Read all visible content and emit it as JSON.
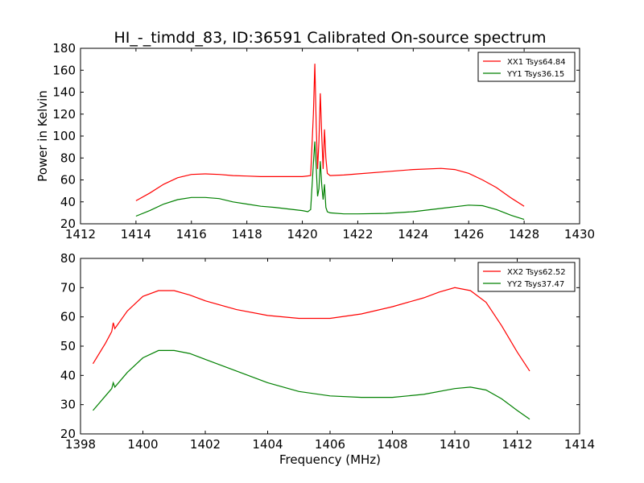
{
  "title": "HI_-_timdd_83, ID:36591 Calibrated On-source spectrum",
  "chart_data": [
    {
      "type": "line",
      "ylabel": "Power in Kelvin",
      "xlabel": "",
      "xlim": [
        1412,
        1430
      ],
      "ylim": [
        20,
        180
      ],
      "xticks": [
        1412,
        1414,
        1416,
        1418,
        1420,
        1422,
        1424,
        1426,
        1428,
        1430
      ],
      "yticks": [
        20,
        40,
        60,
        80,
        100,
        120,
        140,
        160,
        180
      ],
      "legend_position": "top-right",
      "series": [
        {
          "name": "XX1 Tsys64.84",
          "color": "#ff0000",
          "points": [
            [
              1414.0,
              41
            ],
            [
              1414.5,
              48
            ],
            [
              1415.0,
              56
            ],
            [
              1415.5,
              62
            ],
            [
              1416.0,
              65
            ],
            [
              1416.5,
              65.5
            ],
            [
              1417.0,
              65
            ],
            [
              1417.5,
              64
            ],
            [
              1418.0,
              63.5
            ],
            [
              1418.5,
              63
            ],
            [
              1419.0,
              63
            ],
            [
              1419.5,
              63
            ],
            [
              1420.0,
              63
            ],
            [
              1420.3,
              64
            ],
            [
              1420.4,
              120
            ],
            [
              1420.45,
              166
            ],
            [
              1420.5,
              110
            ],
            [
              1420.55,
              70
            ],
            [
              1420.6,
              95
            ],
            [
              1420.65,
              139
            ],
            [
              1420.7,
              100
            ],
            [
              1420.75,
              70
            ],
            [
              1420.8,
              106
            ],
            [
              1420.85,
              80
            ],
            [
              1420.9,
              66
            ],
            [
              1421.0,
              64
            ],
            [
              1421.5,
              64.5
            ],
            [
              1422.0,
              65.5
            ],
            [
              1423.0,
              67.5
            ],
            [
              1424.0,
              69.5
            ],
            [
              1425.0,
              70.5
            ],
            [
              1425.5,
              69.5
            ],
            [
              1426.0,
              66
            ],
            [
              1426.5,
              60
            ],
            [
              1427.0,
              53
            ],
            [
              1427.5,
              44
            ],
            [
              1428.0,
              36
            ]
          ]
        },
        {
          "name": "YY1 Tsys36.15",
          "color": "#008000",
          "points": [
            [
              1414.0,
              27
            ],
            [
              1414.5,
              32
            ],
            [
              1415.0,
              38
            ],
            [
              1415.5,
              42
            ],
            [
              1416.0,
              44
            ],
            [
              1416.5,
              44
            ],
            [
              1417.0,
              43
            ],
            [
              1417.5,
              40
            ],
            [
              1418.0,
              38
            ],
            [
              1418.5,
              36
            ],
            [
              1419.0,
              35
            ],
            [
              1419.5,
              33.5
            ],
            [
              1420.0,
              32
            ],
            [
              1420.2,
              31
            ],
            [
              1420.3,
              33
            ],
            [
              1420.4,
              75
            ],
            [
              1420.45,
              95
            ],
            [
              1420.5,
              72
            ],
            [
              1420.55,
              45
            ],
            [
              1420.6,
              52
            ],
            [
              1420.65,
              77
            ],
            [
              1420.7,
              55
            ],
            [
              1420.75,
              42
            ],
            [
              1420.8,
              56
            ],
            [
              1420.85,
              35
            ],
            [
              1420.9,
              31
            ],
            [
              1421.0,
              30
            ],
            [
              1421.5,
              29
            ],
            [
              1422.0,
              29
            ],
            [
              1423.0,
              29.5
            ],
            [
              1424.0,
              31
            ],
            [
              1425.0,
              34
            ],
            [
              1426.0,
              37
            ],
            [
              1426.5,
              36.5
            ],
            [
              1427.0,
              33
            ],
            [
              1427.5,
              28
            ],
            [
              1428.0,
              24
            ]
          ]
        }
      ]
    },
    {
      "type": "line",
      "ylabel": "",
      "xlabel": "Frequency (MHz)",
      "xlim": [
        1398,
        1414
      ],
      "ylim": [
        20,
        80
      ],
      "xticks": [
        1398,
        1400,
        1402,
        1404,
        1406,
        1408,
        1410,
        1412,
        1414
      ],
      "yticks": [
        20,
        30,
        40,
        50,
        60,
        70,
        80
      ],
      "legend_position": "top-right",
      "series": [
        {
          "name": "XX2 Tsys62.52",
          "color": "#ff0000",
          "points": [
            [
              1398.4,
              44
            ],
            [
              1398.8,
              51
            ],
            [
              1399.0,
              55
            ],
            [
              1399.05,
              58
            ],
            [
              1399.1,
              56
            ],
            [
              1399.5,
              62
            ],
            [
              1400.0,
              67
            ],
            [
              1400.5,
              69
            ],
            [
              1401.0,
              69
            ],
            [
              1401.5,
              67.5
            ],
            [
              1402.0,
              65.5
            ],
            [
              1403.0,
              62.5
            ],
            [
              1404.0,
              60.5
            ],
            [
              1405.0,
              59.5
            ],
            [
              1406.0,
              59.5
            ],
            [
              1407.0,
              61
            ],
            [
              1408.0,
              63.5
            ],
            [
              1409.0,
              66.5
            ],
            [
              1409.5,
              68.5
            ],
            [
              1410.0,
              70
            ],
            [
              1410.5,
              69
            ],
            [
              1411.0,
              65
            ],
            [
              1411.5,
              57
            ],
            [
              1412.0,
              48
            ],
            [
              1412.4,
              41.5
            ]
          ]
        },
        {
          "name": "YY2 Tsys37.47",
          "color": "#008000",
          "points": [
            [
              1398.4,
              28
            ],
            [
              1398.8,
              33
            ],
            [
              1399.0,
              35.5
            ],
            [
              1399.05,
              37.5
            ],
            [
              1399.1,
              36
            ],
            [
              1399.5,
              41
            ],
            [
              1400.0,
              46
            ],
            [
              1400.5,
              48.5
            ],
            [
              1401.0,
              48.5
            ],
            [
              1401.5,
              47.5
            ],
            [
              1402.0,
              45.5
            ],
            [
              1403.0,
              41.5
            ],
            [
              1404.0,
              37.5
            ],
            [
              1405.0,
              34.5
            ],
            [
              1406.0,
              33
            ],
            [
              1407.0,
              32.5
            ],
            [
              1408.0,
              32.5
            ],
            [
              1409.0,
              33.5
            ],
            [
              1410.0,
              35.5
            ],
            [
              1410.5,
              36
            ],
            [
              1411.0,
              35
            ],
            [
              1411.5,
              32
            ],
            [
              1412.0,
              28
            ],
            [
              1412.4,
              25
            ]
          ]
        }
      ]
    }
  ]
}
